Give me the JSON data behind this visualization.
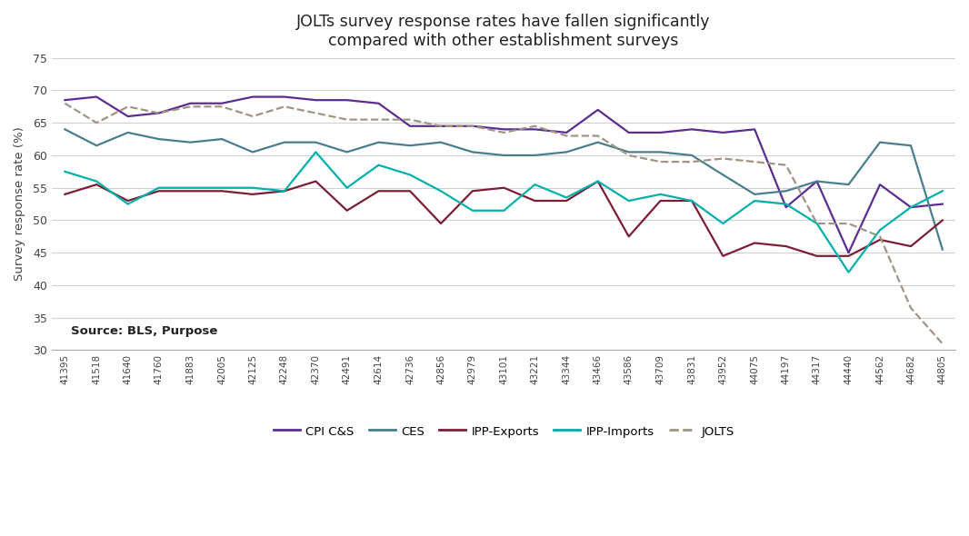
{
  "title": "JOLTs survey response rates have fallen significantly\ncompared with other establishment surveys",
  "ylabel": "Survey response rate (%)",
  "source_text": "Source: BLS, Purpose",
  "ylim": [
    30,
    75
  ],
  "yticks": [
    30,
    35,
    40,
    45,
    50,
    55,
    60,
    65,
    70,
    75
  ],
  "background_color": "#ffffff",
  "grid_color": "#d0d0d0",
  "series": {
    "CPI C&S": {
      "color": "#5c2d91",
      "style": "solid",
      "linewidth": 1.6,
      "x": [
        41395,
        41518,
        41640,
        41760,
        41883,
        42005,
        42125,
        42248,
        42370,
        42491,
        42614,
        42736,
        42856,
        42979,
        43101,
        43221,
        43344,
        43466,
        43586,
        43709,
        43831,
        43952,
        44075,
        44197,
        44317,
        44440,
        44562,
        44682,
        44805
      ],
      "y": [
        68.5,
        69.0,
        66.0,
        66.5,
        68.0,
        68.0,
        69.0,
        69.0,
        68.5,
        68.5,
        68.0,
        64.5,
        64.5,
        64.5,
        64.0,
        64.0,
        63.5,
        67.0,
        63.5,
        63.5,
        64.0,
        63.5,
        64.0,
        52.0,
        56.0,
        45.0,
        55.5,
        52.0,
        52.5
      ]
    },
    "CES": {
      "color": "#4a7d8e",
      "style": "solid",
      "linewidth": 1.6,
      "x": [
        41395,
        41518,
        41640,
        41760,
        41883,
        42005,
        42125,
        42248,
        42370,
        42491,
        42614,
        42736,
        42856,
        42979,
        43101,
        43221,
        43344,
        43466,
        43586,
        43709,
        43831,
        43952,
        44075,
        44197,
        44317,
        44440,
        44562,
        44682,
        44805
      ],
      "y": [
        64.0,
        61.5,
        63.5,
        62.5,
        62.0,
        62.5,
        60.5,
        62.0,
        62.0,
        60.5,
        62.0,
        61.5,
        62.0,
        60.5,
        60.0,
        60.0,
        60.5,
        62.0,
        60.5,
        60.5,
        60.0,
        57.0,
        54.0,
        54.5,
        56.0,
        55.5,
        62.0,
        61.5,
        45.5
      ]
    },
    "IPP-Exports": {
      "color": "#7b1d35",
      "style": "solid",
      "linewidth": 1.6,
      "x": [
        41395,
        41518,
        41640,
        41760,
        41883,
        42005,
        42125,
        42248,
        42370,
        42491,
        42614,
        42736,
        42856,
        42979,
        43101,
        43221,
        43344,
        43466,
        43586,
        43709,
        43831,
        43952,
        44075,
        44197,
        44317,
        44440,
        44562,
        44682,
        44805
      ],
      "y": [
        54.0,
        55.5,
        53.0,
        54.5,
        54.5,
        54.5,
        54.0,
        54.5,
        56.0,
        51.5,
        54.5,
        54.5,
        49.5,
        54.5,
        55.0,
        53.0,
        53.0,
        56.0,
        47.5,
        53.0,
        53.0,
        44.5,
        46.5,
        46.0,
        44.5,
        44.5,
        47.0,
        46.0,
        50.0
      ]
    },
    "IPP-Imports": {
      "color": "#00b0aa",
      "style": "solid",
      "linewidth": 1.6,
      "x": [
        41395,
        41518,
        41640,
        41760,
        41883,
        42005,
        42125,
        42248,
        42370,
        42491,
        42614,
        42736,
        42856,
        42979,
        43101,
        43221,
        43344,
        43466,
        43586,
        43709,
        43831,
        43952,
        44075,
        44197,
        44317,
        44440,
        44562,
        44682,
        44805
      ],
      "y": [
        57.5,
        56.0,
        52.5,
        55.0,
        55.0,
        55.0,
        55.0,
        54.5,
        60.5,
        55.0,
        58.5,
        57.0,
        54.5,
        51.5,
        51.5,
        55.5,
        53.5,
        56.0,
        53.0,
        54.0,
        53.0,
        49.5,
        53.0,
        52.5,
        49.5,
        42.0,
        48.5,
        52.0,
        54.5
      ]
    },
    "JOLTS": {
      "color": "#a09585",
      "style": "dashed",
      "linewidth": 1.6,
      "x": [
        41395,
        41518,
        41640,
        41760,
        41883,
        42005,
        42125,
        42248,
        42370,
        42491,
        42614,
        42736,
        42856,
        42979,
        43101,
        43221,
        43344,
        43466,
        43586,
        43709,
        43831,
        43952,
        44075,
        44197,
        44317,
        44440,
        44562,
        44682,
        44805
      ],
      "y": [
        68.0,
        65.0,
        67.5,
        66.5,
        67.5,
        67.5,
        66.0,
        67.5,
        66.5,
        65.5,
        65.5,
        65.5,
        64.5,
        64.5,
        63.5,
        64.5,
        63.0,
        63.0,
        60.0,
        59.0,
        59.0,
        59.5,
        59.0,
        58.5,
        49.5,
        49.5,
        47.5,
        36.5,
        31.0
      ]
    }
  },
  "xtick_labels": [
    "41395",
    "41518",
    "41640",
    "41760",
    "41883",
    "42005",
    "42125",
    "42248",
    "42370",
    "42491",
    "42614",
    "42736",
    "42856",
    "42979",
    "43101",
    "43221",
    "43344",
    "43466",
    "43586",
    "43709",
    "43831",
    "43952",
    "44075",
    "44197",
    "44317",
    "44440",
    "44562",
    "44682",
    "44805"
  ],
  "legend_entries": [
    "CPI C&S",
    "CES",
    "IPP-Exports",
    "IPP-Imports",
    "JOLTS"
  ]
}
